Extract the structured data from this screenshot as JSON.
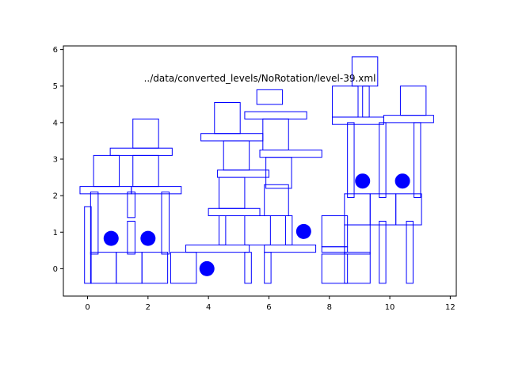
{
  "chart_data": {
    "type": "scatter",
    "title": "../data/converted_levels/NoRotation/level-39.xml",
    "xlabel": "",
    "ylabel": "",
    "xlim": [
      -0.8,
      12.2
    ],
    "ylim": [
      -0.75,
      6.1
    ],
    "xticks": [
      0,
      2,
      4,
      6,
      8,
      10,
      12
    ],
    "yticks": [
      0,
      1,
      2,
      3,
      4,
      5,
      6
    ],
    "grid": false,
    "colors": {
      "outline": "#0000ff",
      "marker": "#0000ff",
      "axis": "#000000"
    },
    "rectangles": [
      {
        "x0": -0.1,
        "y0": -0.4,
        "x1": 0.12,
        "y1": 1.7
      },
      {
        "x0": 0.1,
        "y0": 0.4,
        "x1": 0.35,
        "y1": 2.1
      },
      {
        "x0": 1.32,
        "y0": 0.4,
        "x1": 1.57,
        "y1": 1.3
      },
      {
        "x0": 1.32,
        "y0": 1.4,
        "x1": 1.57,
        "y1": 2.1
      },
      {
        "x0": 2.45,
        "y0": 0.4,
        "x1": 2.7,
        "y1": 2.1
      },
      {
        "x0": 0.1,
        "y0": -0.4,
        "x1": 0.95,
        "y1": 0.45
      },
      {
        "x0": 0.95,
        "y0": -0.4,
        "x1": 1.8,
        "y1": 0.45
      },
      {
        "x0": 1.8,
        "y0": -0.4,
        "x1": 2.65,
        "y1": 0.45
      },
      {
        "x0": 2.75,
        "y0": -0.4,
        "x1": 3.6,
        "y1": 0.45
      },
      {
        "x0": -0.25,
        "y0": 2.05,
        "x1": 1.45,
        "y1": 2.25
      },
      {
        "x0": 1.45,
        "y0": 2.05,
        "x1": 3.1,
        "y1": 2.25
      },
      {
        "x0": 0.2,
        "y0": 2.25,
        "x1": 1.05,
        "y1": 3.1
      },
      {
        "x0": 1.5,
        "y0": 2.25,
        "x1": 2.35,
        "y1": 3.1
      },
      {
        "x0": 0.75,
        "y0": 3.1,
        "x1": 2.8,
        "y1": 3.3
      },
      {
        "x0": 1.5,
        "y0": 3.3,
        "x1": 2.35,
        "y1": 4.1
      },
      {
        "x0": 3.25,
        "y0": 0.45,
        "x1": 5.35,
        "y1": 0.65
      },
      {
        "x0": 5.2,
        "y0": -0.4,
        "x1": 5.42,
        "y1": 0.45
      },
      {
        "x0": 4.35,
        "y0": 0.65,
        "x1": 4.57,
        "y1": 1.45
      },
      {
        "x0": 5.2,
        "y0": 0.65,
        "x1": 6.05,
        "y1": 1.45
      },
      {
        "x0": 4.0,
        "y0": 1.45,
        "x1": 5.7,
        "y1": 1.65
      },
      {
        "x0": 4.35,
        "y0": 1.65,
        "x1": 5.2,
        "y1": 2.5
      },
      {
        "x0": 4.3,
        "y0": 2.5,
        "x1": 6.0,
        "y1": 2.7
      },
      {
        "x0": 4.5,
        "y0": 2.7,
        "x1": 5.35,
        "y1": 3.5
      },
      {
        "x0": 3.75,
        "y0": 3.5,
        "x1": 5.8,
        "y1": 3.7
      },
      {
        "x0": 4.2,
        "y0": 3.7,
        "x1": 5.05,
        "y1": 4.55
      },
      {
        "x0": 5.85,
        "y0": -0.4,
        "x1": 6.07,
        "y1": 0.45
      },
      {
        "x0": 5.85,
        "y0": 0.45,
        "x1": 7.55,
        "y1": 0.65
      },
      {
        "x0": 5.85,
        "y0": 1.45,
        "x1": 6.65,
        "y1": 2.3
      },
      {
        "x0": 6.55,
        "y0": 0.65,
        "x1": 6.77,
        "y1": 1.45
      },
      {
        "x0": 7.75,
        "y0": 0.45,
        "x1": 8.6,
        "y1": 0.6
      },
      {
        "x0": 7.75,
        "y0": 0.6,
        "x1": 8.6,
        "y1": 1.45
      },
      {
        "x0": 7.75,
        "y0": -0.4,
        "x1": 8.6,
        "y1": 0.4
      },
      {
        "x0": 5.9,
        "y0": 2.2,
        "x1": 6.75,
        "y1": 3.05
      },
      {
        "x0": 5.7,
        "y0": 3.05,
        "x1": 7.75,
        "y1": 3.25
      },
      {
        "x0": 5.8,
        "y0": 3.25,
        "x1": 6.65,
        "y1": 4.1
      },
      {
        "x0": 5.2,
        "y0": 4.1,
        "x1": 7.25,
        "y1": 4.3
      },
      {
        "x0": 5.6,
        "y0": 4.5,
        "x1": 6.45,
        "y1": 4.9
      },
      {
        "x0": 8.5,
        "y0": -0.4,
        "x1": 9.35,
        "y1": 0.45
      },
      {
        "x0": 8.5,
        "y0": 0.4,
        "x1": 9.35,
        "y1": 1.2
      },
      {
        "x0": 8.5,
        "y0": 1.2,
        "x1": 9.35,
        "y1": 2.05
      },
      {
        "x0": 9.35,
        "y0": 1.2,
        "x1": 10.2,
        "y1": 2.05
      },
      {
        "x0": 10.2,
        "y0": 1.2,
        "x1": 11.05,
        "y1": 2.05
      },
      {
        "x0": 9.65,
        "y0": -0.4,
        "x1": 9.87,
        "y1": 1.3
      },
      {
        "x0": 10.55,
        "y0": -0.4,
        "x1": 10.77,
        "y1": 1.3
      },
      {
        "x0": 8.6,
        "y0": 1.95,
        "x1": 8.82,
        "y1": 4.0
      },
      {
        "x0": 9.65,
        "y0": 1.95,
        "x1": 9.87,
        "y1": 4.0
      },
      {
        "x0": 10.8,
        "y0": 1.95,
        "x1": 11.02,
        "y1": 4.0
      },
      {
        "x0": 8.1,
        "y0": 3.95,
        "x1": 9.8,
        "y1": 4.15
      },
      {
        "x0": 9.8,
        "y0": 4.0,
        "x1": 11.45,
        "y1": 4.2
      },
      {
        "x0": 8.1,
        "y0": 4.15,
        "x1": 8.95,
        "y1": 5.0
      },
      {
        "x0": 9.1,
        "y0": 4.15,
        "x1": 9.32,
        "y1": 5.0
      },
      {
        "x0": 8.75,
        "y0": 5.0,
        "x1": 9.6,
        "y1": 5.8
      },
      {
        "x0": 10.35,
        "y0": 4.2,
        "x1": 11.2,
        "y1": 5.0
      }
    ],
    "circles": [
      {
        "x": 0.78,
        "y": 0.83
      },
      {
        "x": 2.0,
        "y": 0.83
      },
      {
        "x": 3.95,
        "y": 0.0
      },
      {
        "x": 7.15,
        "y": 1.02
      },
      {
        "x": 9.1,
        "y": 2.4
      },
      {
        "x": 10.42,
        "y": 2.4
      }
    ]
  }
}
